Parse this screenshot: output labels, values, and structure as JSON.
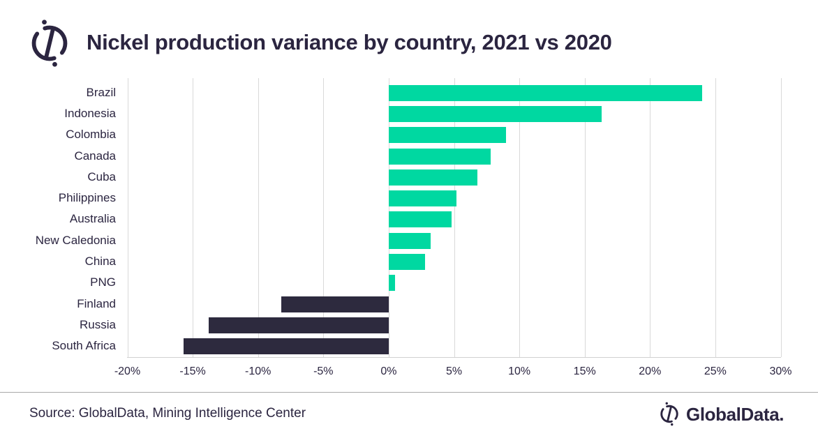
{
  "header": {
    "title": "Nickel production variance by country, 2021 vs 2020"
  },
  "footer": {
    "source": "Source: GlobalData, Mining Intelligence Center",
    "brand": "GlobalData."
  },
  "icons": {
    "logo": "globaldata-compass-logo"
  },
  "chart_data": {
    "type": "bar",
    "orientation": "horizontal",
    "title": "Nickel production variance by country, 2021 vs 2020",
    "unit": "%",
    "categories": [
      "Brazil",
      "Indonesia",
      "Colombia",
      "Canada",
      "Cuba",
      "Philippines",
      "Australia",
      "New Caledonia",
      "China",
      "PNG",
      "Finland",
      "Russia",
      "South Africa"
    ],
    "values": [
      24.0,
      16.3,
      9.0,
      7.8,
      6.8,
      5.2,
      4.8,
      3.2,
      2.8,
      0.5,
      -8.2,
      -13.8,
      -15.7
    ],
    "xlim": [
      -20,
      30
    ],
    "xticks": [
      -20,
      -15,
      -10,
      -5,
      0,
      5,
      10,
      15,
      20,
      25,
      30
    ],
    "xtick_labels": [
      "-20%",
      "-15%",
      "-10%",
      "-5%",
      "0%",
      "5%",
      "10%",
      "15%",
      "20%",
      "25%",
      "30%"
    ],
    "grid": true,
    "legend_position": "none",
    "colors": {
      "positive": "#00d8a1",
      "negative": "#2d2a3e",
      "gridline": "#d9d9d9",
      "text": "#2b2540"
    }
  }
}
